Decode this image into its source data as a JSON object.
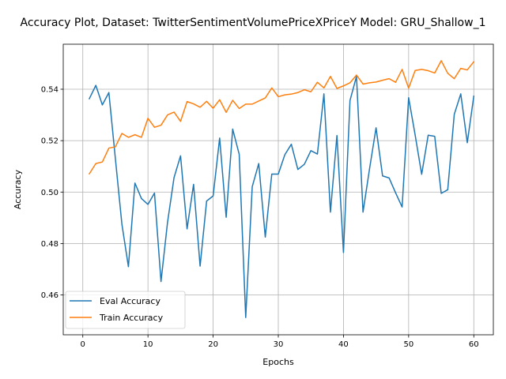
{
  "chart_data": {
    "type": "line",
    "title": "Accuracy Plot, Dataset: TwitterSentimentVolumePriceXPriceY Model: GRU_Shallow_1",
    "xlabel": "Epochs",
    "ylabel": "Accuracy",
    "xlim": [
      -3,
      63
    ],
    "ylim": [
      0.4445,
      0.5575
    ],
    "xticks": [
      "0",
      "10",
      "20",
      "30",
      "40",
      "50",
      "60"
    ],
    "yticks": [
      "0.46",
      "0.48",
      "0.50",
      "0.52",
      "0.54"
    ],
    "grid": true,
    "legend_position": "lower-left",
    "x": [
      1,
      2,
      3,
      4,
      5,
      6,
      7,
      8,
      9,
      10,
      11,
      12,
      13,
      14,
      15,
      16,
      17,
      18,
      19,
      20,
      21,
      22,
      23,
      24,
      25,
      26,
      27,
      28,
      29,
      30,
      31,
      32,
      33,
      34,
      35,
      36,
      37,
      38,
      39,
      40,
      41,
      42,
      43,
      44,
      45,
      46,
      47,
      48,
      49,
      50,
      51,
      52,
      53,
      54,
      55,
      56,
      57,
      58,
      59,
      60
    ],
    "series": [
      {
        "name": "Eval Accuracy",
        "color": "#1f77b4",
        "values": [
          0.5363,
          0.5415,
          0.5339,
          0.5387,
          0.513,
          0.4875,
          0.471,
          0.5035,
          0.4975,
          0.4952,
          0.4996,
          0.4652,
          0.4882,
          0.5056,
          0.5141,
          0.4857,
          0.503,
          0.4712,
          0.4965,
          0.4985,
          0.521,
          0.4902,
          0.5245,
          0.5147,
          0.4512,
          0.5021,
          0.5111,
          0.4825,
          0.507,
          0.507,
          0.5145,
          0.5186,
          0.5088,
          0.5108,
          0.5161,
          0.5148,
          0.5382,
          0.4922,
          0.522,
          0.4765,
          0.5356,
          0.545,
          0.4922,
          0.509,
          0.525,
          0.5063,
          0.5055,
          0.4997,
          0.4942,
          0.5367,
          0.5222,
          0.5069,
          0.5221,
          0.5217,
          0.4995,
          0.5009,
          0.5302,
          0.5382,
          0.5192,
          0.5373
        ]
      },
      {
        "name": "Train Accuracy",
        "color": "#ff7f0e",
        "values": [
          0.5071,
          0.5111,
          0.5117,
          0.5171,
          0.5176,
          0.5228,
          0.5213,
          0.5223,
          0.5213,
          0.5287,
          0.5252,
          0.526,
          0.53,
          0.5311,
          0.5275,
          0.5352,
          0.5343,
          0.533,
          0.5353,
          0.5326,
          0.5359,
          0.531,
          0.5357,
          0.5325,
          0.5342,
          0.5342,
          0.5354,
          0.5366,
          0.5405,
          0.5371,
          0.5378,
          0.5381,
          0.5387,
          0.5398,
          0.539,
          0.5427,
          0.5405,
          0.545,
          0.5403,
          0.5413,
          0.5425,
          0.5455,
          0.542,
          0.5425,
          0.5428,
          0.5435,
          0.5441,
          0.5427,
          0.5477,
          0.5404,
          0.5473,
          0.5477,
          0.5472,
          0.5463,
          0.5511,
          0.5462,
          0.5441,
          0.5481,
          0.5475,
          0.5507
        ]
      }
    ]
  }
}
